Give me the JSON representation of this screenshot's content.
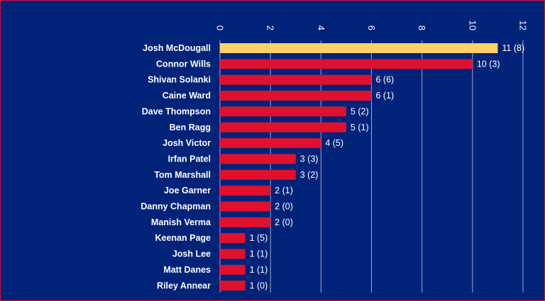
{
  "chart_data": {
    "type": "bar",
    "orientation": "horizontal",
    "categories": [
      "Josh McDougall",
      "Connor Wills",
      "Shivan Solanki",
      "Caine Ward",
      "Dave Thompson",
      "Ben Ragg",
      "Josh Victor",
      "Irfan Patel",
      "Tom Marshall",
      "Joe Garner",
      "Danny Chapman",
      "Manish Verma",
      "Keenan Page",
      "Josh Lee",
      "Matt Danes",
      "Riley Annear"
    ],
    "values": [
      11,
      10,
      6,
      6,
      5,
      5,
      4,
      3,
      3,
      2,
      2,
      2,
      1,
      1,
      1,
      1
    ],
    "data_labels": [
      "11 (8)",
      "10 (3)",
      "6 (6)",
      "6 (1)",
      "5 (2)",
      "5 (1)",
      "4 (5)",
      "3 (3)",
      "3 (2)",
      "2 (1)",
      "2 (0)",
      "2 (0)",
      "1 (5)",
      "1 (1)",
      "1 (1)",
      "1 (0)"
    ],
    "x_ticks": [
      "0",
      "2",
      "4",
      "6",
      "8",
      "10",
      "12"
    ],
    "xlim": [
      0,
      12
    ],
    "x_axis_position": "top",
    "grid": true,
    "highlight_index": 0,
    "colors": {
      "background": "#00237a",
      "border": "#d4123a",
      "bar": "#e0102f",
      "highlight_bar": "#ffd166",
      "text": "#ffffff",
      "grid": "#9aa6c8"
    }
  }
}
